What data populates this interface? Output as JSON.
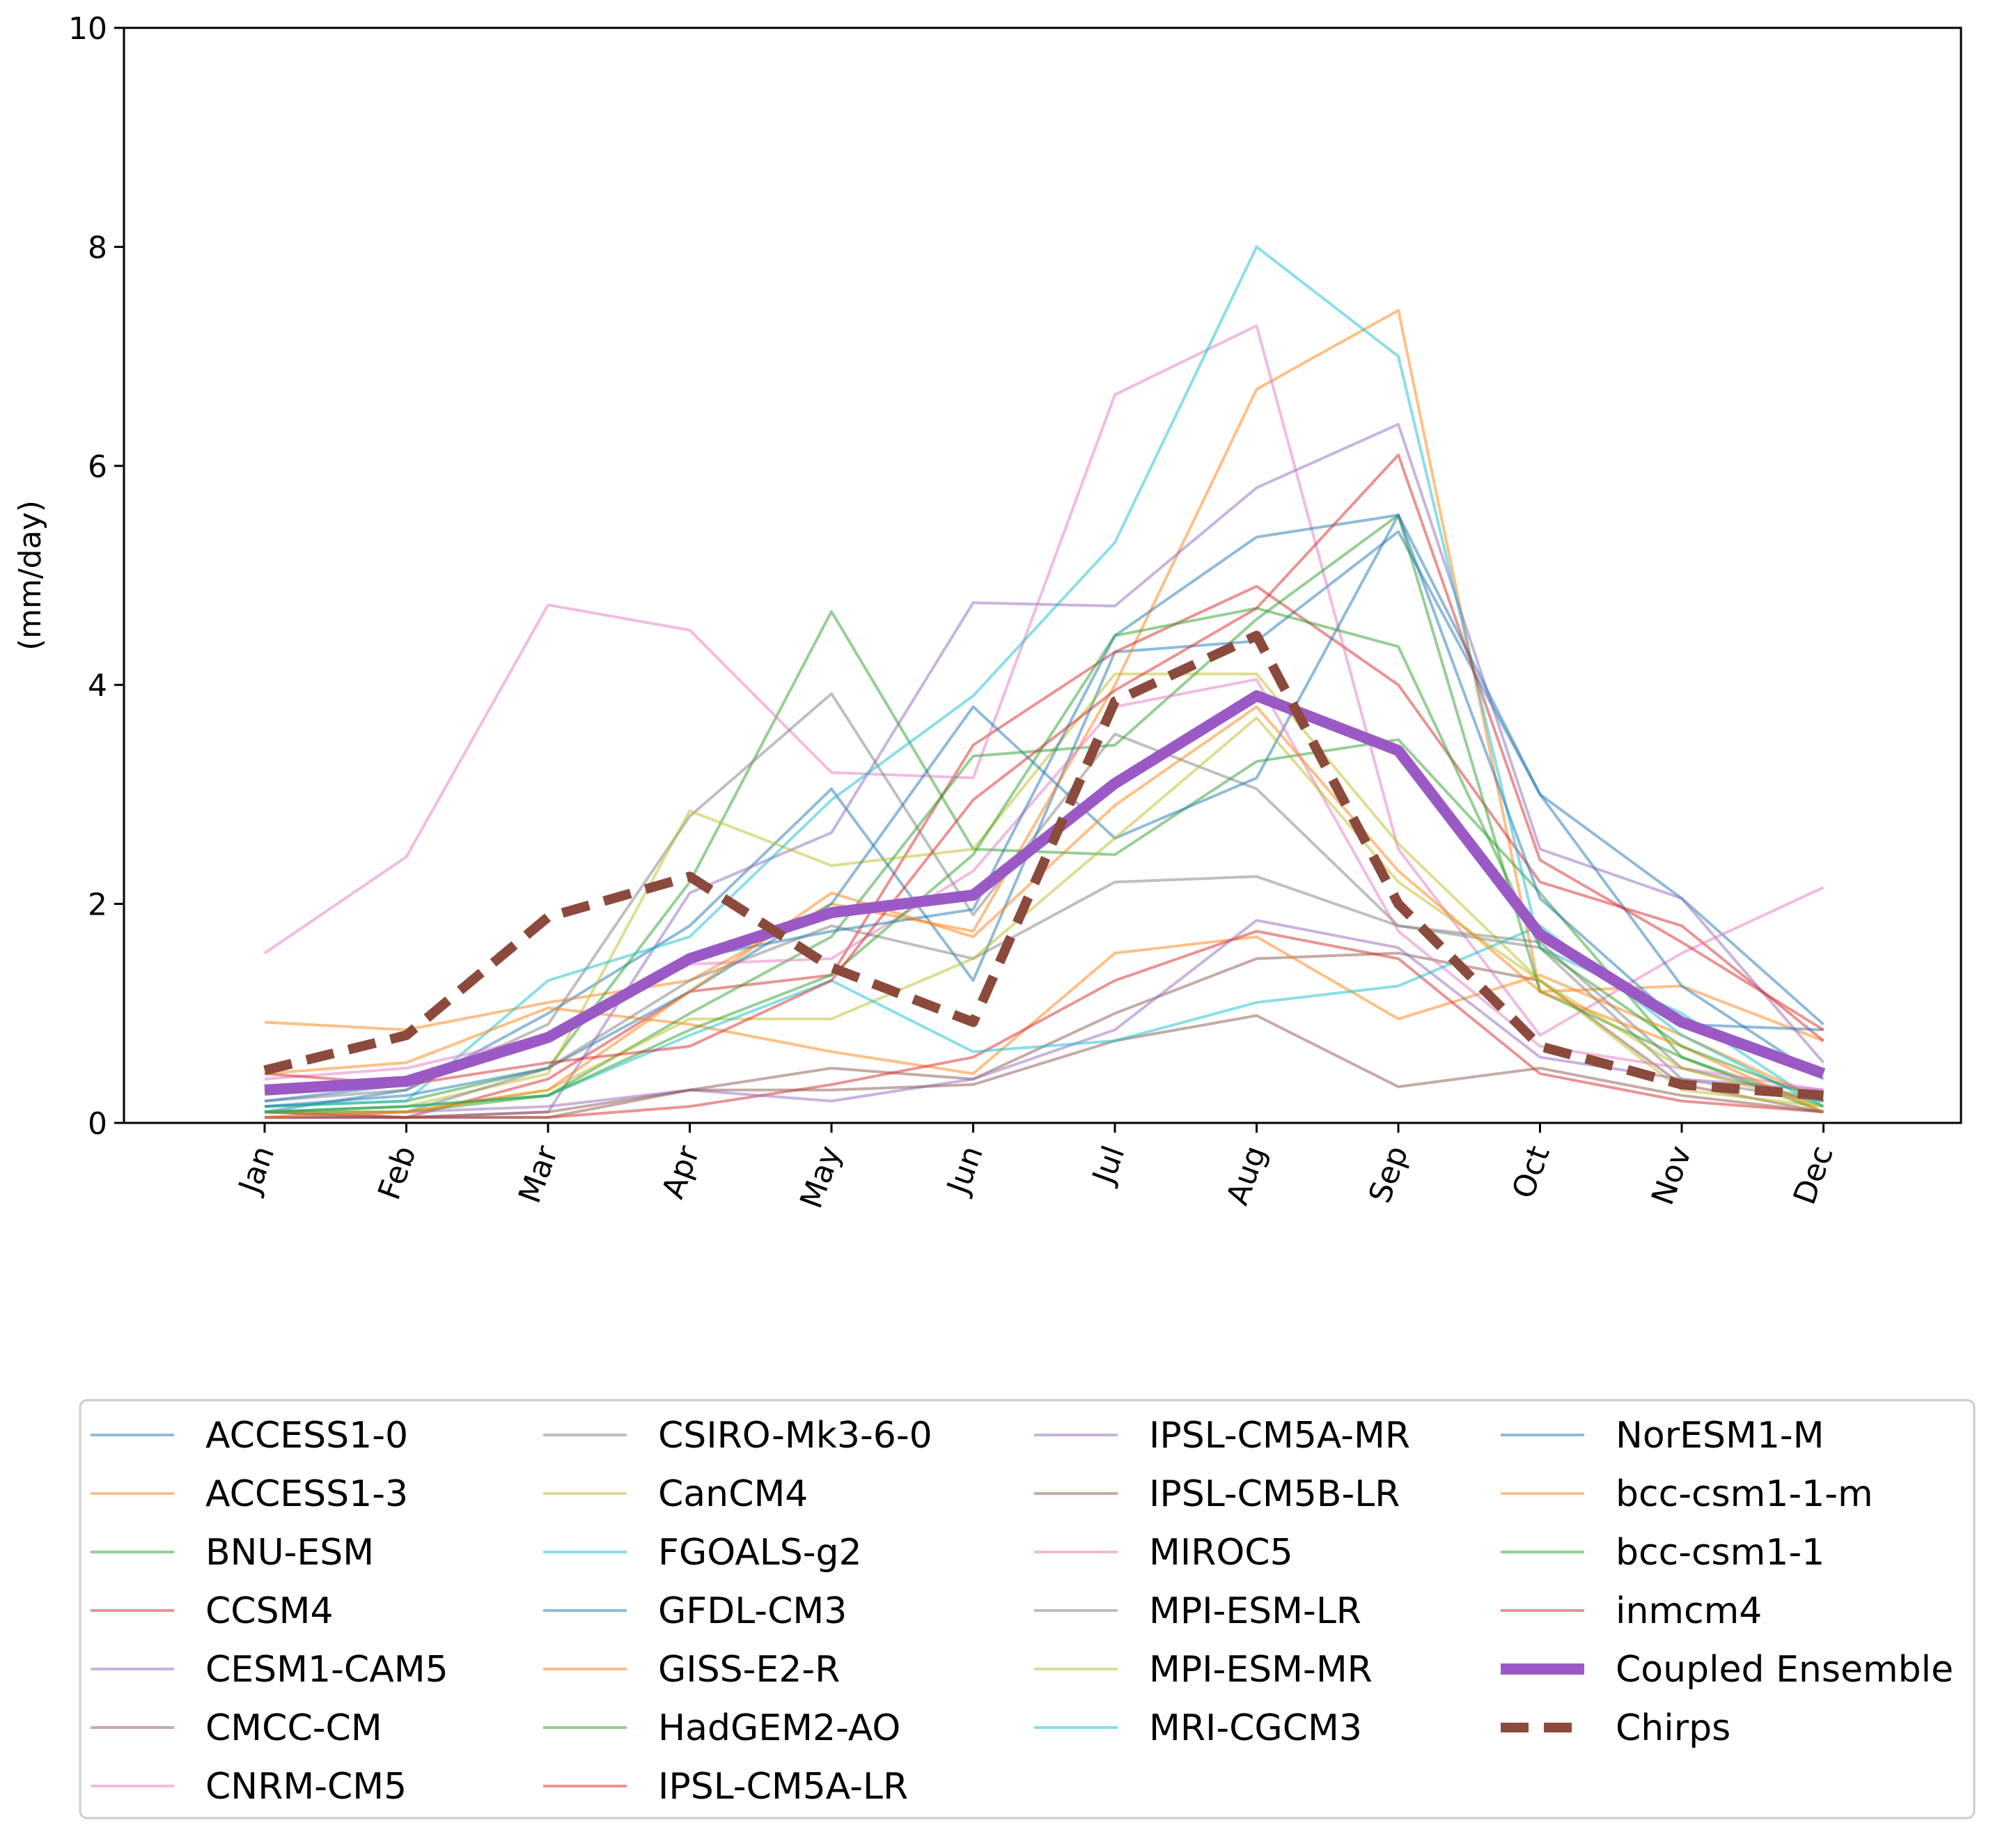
{
  "chart_data": {
    "type": "line",
    "title": "",
    "xlabel": "",
    "ylabel": "(mm/day)",
    "ylim": [
      0,
      10
    ],
    "yticks": [
      "0",
      "2",
      "4",
      "6",
      "8",
      "10"
    ],
    "categories": [
      "Jan",
      "Feb",
      "Mar",
      "Apr",
      "May",
      "Jun",
      "Jul",
      "Aug",
      "Sep",
      "Oct",
      "Nov",
      "Dec"
    ],
    "grid": false,
    "legend": "bottom",
    "series": [
      {
        "name": "ACCESS1-0",
        "color": "#1f77b4",
        "values": [
          0.1,
          0.3,
          1.0,
          1.8,
          3.05,
          1.3,
          4.3,
          4.4,
          5.4,
          3.0,
          2.05,
          0.9
        ]
      },
      {
        "name": "ACCESS1-3",
        "color": "#ff7f0e",
        "values": [
          0.92,
          0.85,
          1.1,
          1.3,
          2.0,
          1.75,
          4.0,
          6.7,
          7.42,
          1.2,
          1.25,
          0.75
        ]
      },
      {
        "name": "BNU-ESM",
        "color": "#2ca02c",
        "values": [
          0.15,
          0.2,
          0.5,
          2.2,
          4.67,
          2.5,
          2.45,
          3.3,
          3.5,
          2.1,
          0.6,
          0.15
        ]
      },
      {
        "name": "CCSM4",
        "color": "#d62728",
        "values": [
          0.05,
          0.05,
          0.4,
          1.2,
          1.35,
          3.45,
          4.3,
          4.9,
          4.0,
          2.2,
          1.8,
          0.75
        ]
      },
      {
        "name": "CESM1-CAM5",
        "color": "#9467bd",
        "values": [
          0.05,
          0.05,
          0.1,
          2.1,
          2.65,
          4.75,
          4.72,
          5.8,
          6.38,
          2.5,
          2.05,
          0.55
        ]
      },
      {
        "name": "CMCC-CM",
        "color": "#8c564b",
        "values": [
          0.1,
          0.05,
          0.1,
          0.3,
          0.5,
          0.4,
          1.0,
          1.5,
          1.55,
          1.3,
          0.35,
          0.1
        ]
      },
      {
        "name": "CNRM-CM5",
        "color": "#e377c2",
        "values": [
          1.55,
          2.43,
          4.73,
          4.5,
          3.2,
          3.15,
          6.65,
          7.28,
          2.5,
          0.8,
          1.55,
          2.15
        ]
      },
      {
        "name": "CSIRO-Mk3-6-0",
        "color": "#7f7f7f",
        "values": [
          0.2,
          0.3,
          0.9,
          2.8,
          3.92,
          1.9,
          3.55,
          3.05,
          1.8,
          1.6,
          0.4,
          0.2
        ]
      },
      {
        "name": "CanCM4",
        "color": "#bcbd22",
        "values": [
          0.1,
          0.15,
          0.45,
          2.85,
          2.35,
          2.5,
          4.1,
          4.1,
          2.55,
          1.3,
          0.3,
          0.15
        ]
      },
      {
        "name": "FGOALS-g2",
        "color": "#17becf",
        "values": [
          0.15,
          0.2,
          1.3,
          1.7,
          2.95,
          3.9,
          5.3,
          8.0,
          7.0,
          1.6,
          1.0,
          0.15
        ]
      },
      {
        "name": "GFDL-CM3",
        "color": "#1f77b4",
        "values": [
          0.15,
          0.25,
          0.5,
          1.2,
          2.0,
          3.8,
          2.6,
          3.15,
          5.55,
          3.0,
          1.25,
          0.4
        ]
      },
      {
        "name": "GISS-E2-R",
        "color": "#ff7f0e",
        "values": [
          0.45,
          0.55,
          1.05,
          0.9,
          0.65,
          0.45,
          1.55,
          1.7,
          0.95,
          1.35,
          0.8,
          0.2
        ]
      },
      {
        "name": "HadGEM2-AO",
        "color": "#2ca02c",
        "values": [
          0.1,
          0.1,
          0.25,
          1.0,
          1.7,
          3.35,
          3.45,
          4.6,
          5.55,
          1.2,
          0.6,
          0.1
        ]
      },
      {
        "name": "IPSL-CM5A-LR",
        "color": "#d62728",
        "values": [
          0.1,
          0.05,
          0.05,
          0.15,
          0.35,
          0.6,
          1.3,
          1.75,
          1.5,
          0.45,
          0.2,
          0.1
        ]
      },
      {
        "name": "IPSL-CM5A-MR",
        "color": "#9467bd",
        "values": [
          0.05,
          0.1,
          0.15,
          0.3,
          0.2,
          0.4,
          0.85,
          1.85,
          1.6,
          0.6,
          0.4,
          0.3
        ]
      },
      {
        "name": "IPSL-CM5B-LR",
        "color": "#8c564b",
        "values": [
          0.05,
          0.05,
          0.05,
          0.3,
          0.3,
          0.35,
          0.75,
          0.98,
          0.33,
          0.5,
          0.25,
          0.1
        ]
      },
      {
        "name": "MIROC5",
        "color": "#e377c2",
        "values": [
          0.4,
          0.5,
          0.8,
          1.45,
          1.5,
          2.3,
          3.8,
          4.05,
          1.75,
          0.7,
          0.5,
          0.3
        ]
      },
      {
        "name": "MPI-ESM-LR",
        "color": "#7f7f7f",
        "values": [
          0.1,
          0.1,
          0.5,
          1.3,
          1.8,
          1.5,
          2.2,
          2.25,
          1.8,
          1.65,
          0.5,
          0.2
        ]
      },
      {
        "name": "MPI-ESM-MR",
        "color": "#bcbd22",
        "values": [
          0.1,
          0.1,
          0.3,
          0.95,
          0.95,
          1.5,
          2.6,
          3.7,
          2.2,
          1.3,
          0.5,
          0.15
        ]
      },
      {
        "name": "MRI-CGCM3",
        "color": "#17becf",
        "values": [
          0.1,
          0.15,
          0.25,
          0.8,
          1.3,
          0.65,
          0.75,
          1.1,
          1.25,
          1.8,
          0.8,
          0.15
        ]
      },
      {
        "name": "NorESM1-M",
        "color": "#1f77b4",
        "values": [
          0.2,
          0.35,
          0.8,
          1.5,
          1.75,
          1.95,
          4.45,
          5.35,
          5.55,
          2.05,
          0.9,
          0.85
        ]
      },
      {
        "name": "bcc-csm1-1-m",
        "color": "#ff7f0e",
        "values": [
          0.05,
          0.1,
          0.3,
          1.2,
          2.1,
          1.7,
          2.9,
          3.8,
          2.3,
          1.2,
          0.7,
          0.1
        ]
      },
      {
        "name": "bcc-csm1-1",
        "color": "#2ca02c",
        "values": [
          0.1,
          0.15,
          0.25,
          0.85,
          1.35,
          2.45,
          4.45,
          4.7,
          4.35,
          1.6,
          0.7,
          0.2
        ]
      },
      {
        "name": "inmcm4",
        "color": "#d62728",
        "values": [
          0.45,
          0.35,
          0.55,
          0.7,
          1.3,
          2.95,
          3.95,
          4.7,
          6.1,
          2.4,
          1.65,
          0.85
        ]
      },
      {
        "name": "Coupled Ensemble",
        "color": "#9b59c6",
        "values": [
          0.3,
          0.38,
          0.78,
          1.5,
          1.92,
          2.08,
          3.1,
          3.9,
          3.4,
          1.72,
          0.92,
          0.45
        ]
      },
      {
        "name": "Chirps",
        "color": "#8b4a3c",
        "values": [
          0.48,
          0.8,
          1.88,
          2.25,
          1.42,
          0.92,
          3.85,
          4.45,
          2.0,
          0.7,
          0.35,
          0.25
        ]
      }
    ]
  }
}
